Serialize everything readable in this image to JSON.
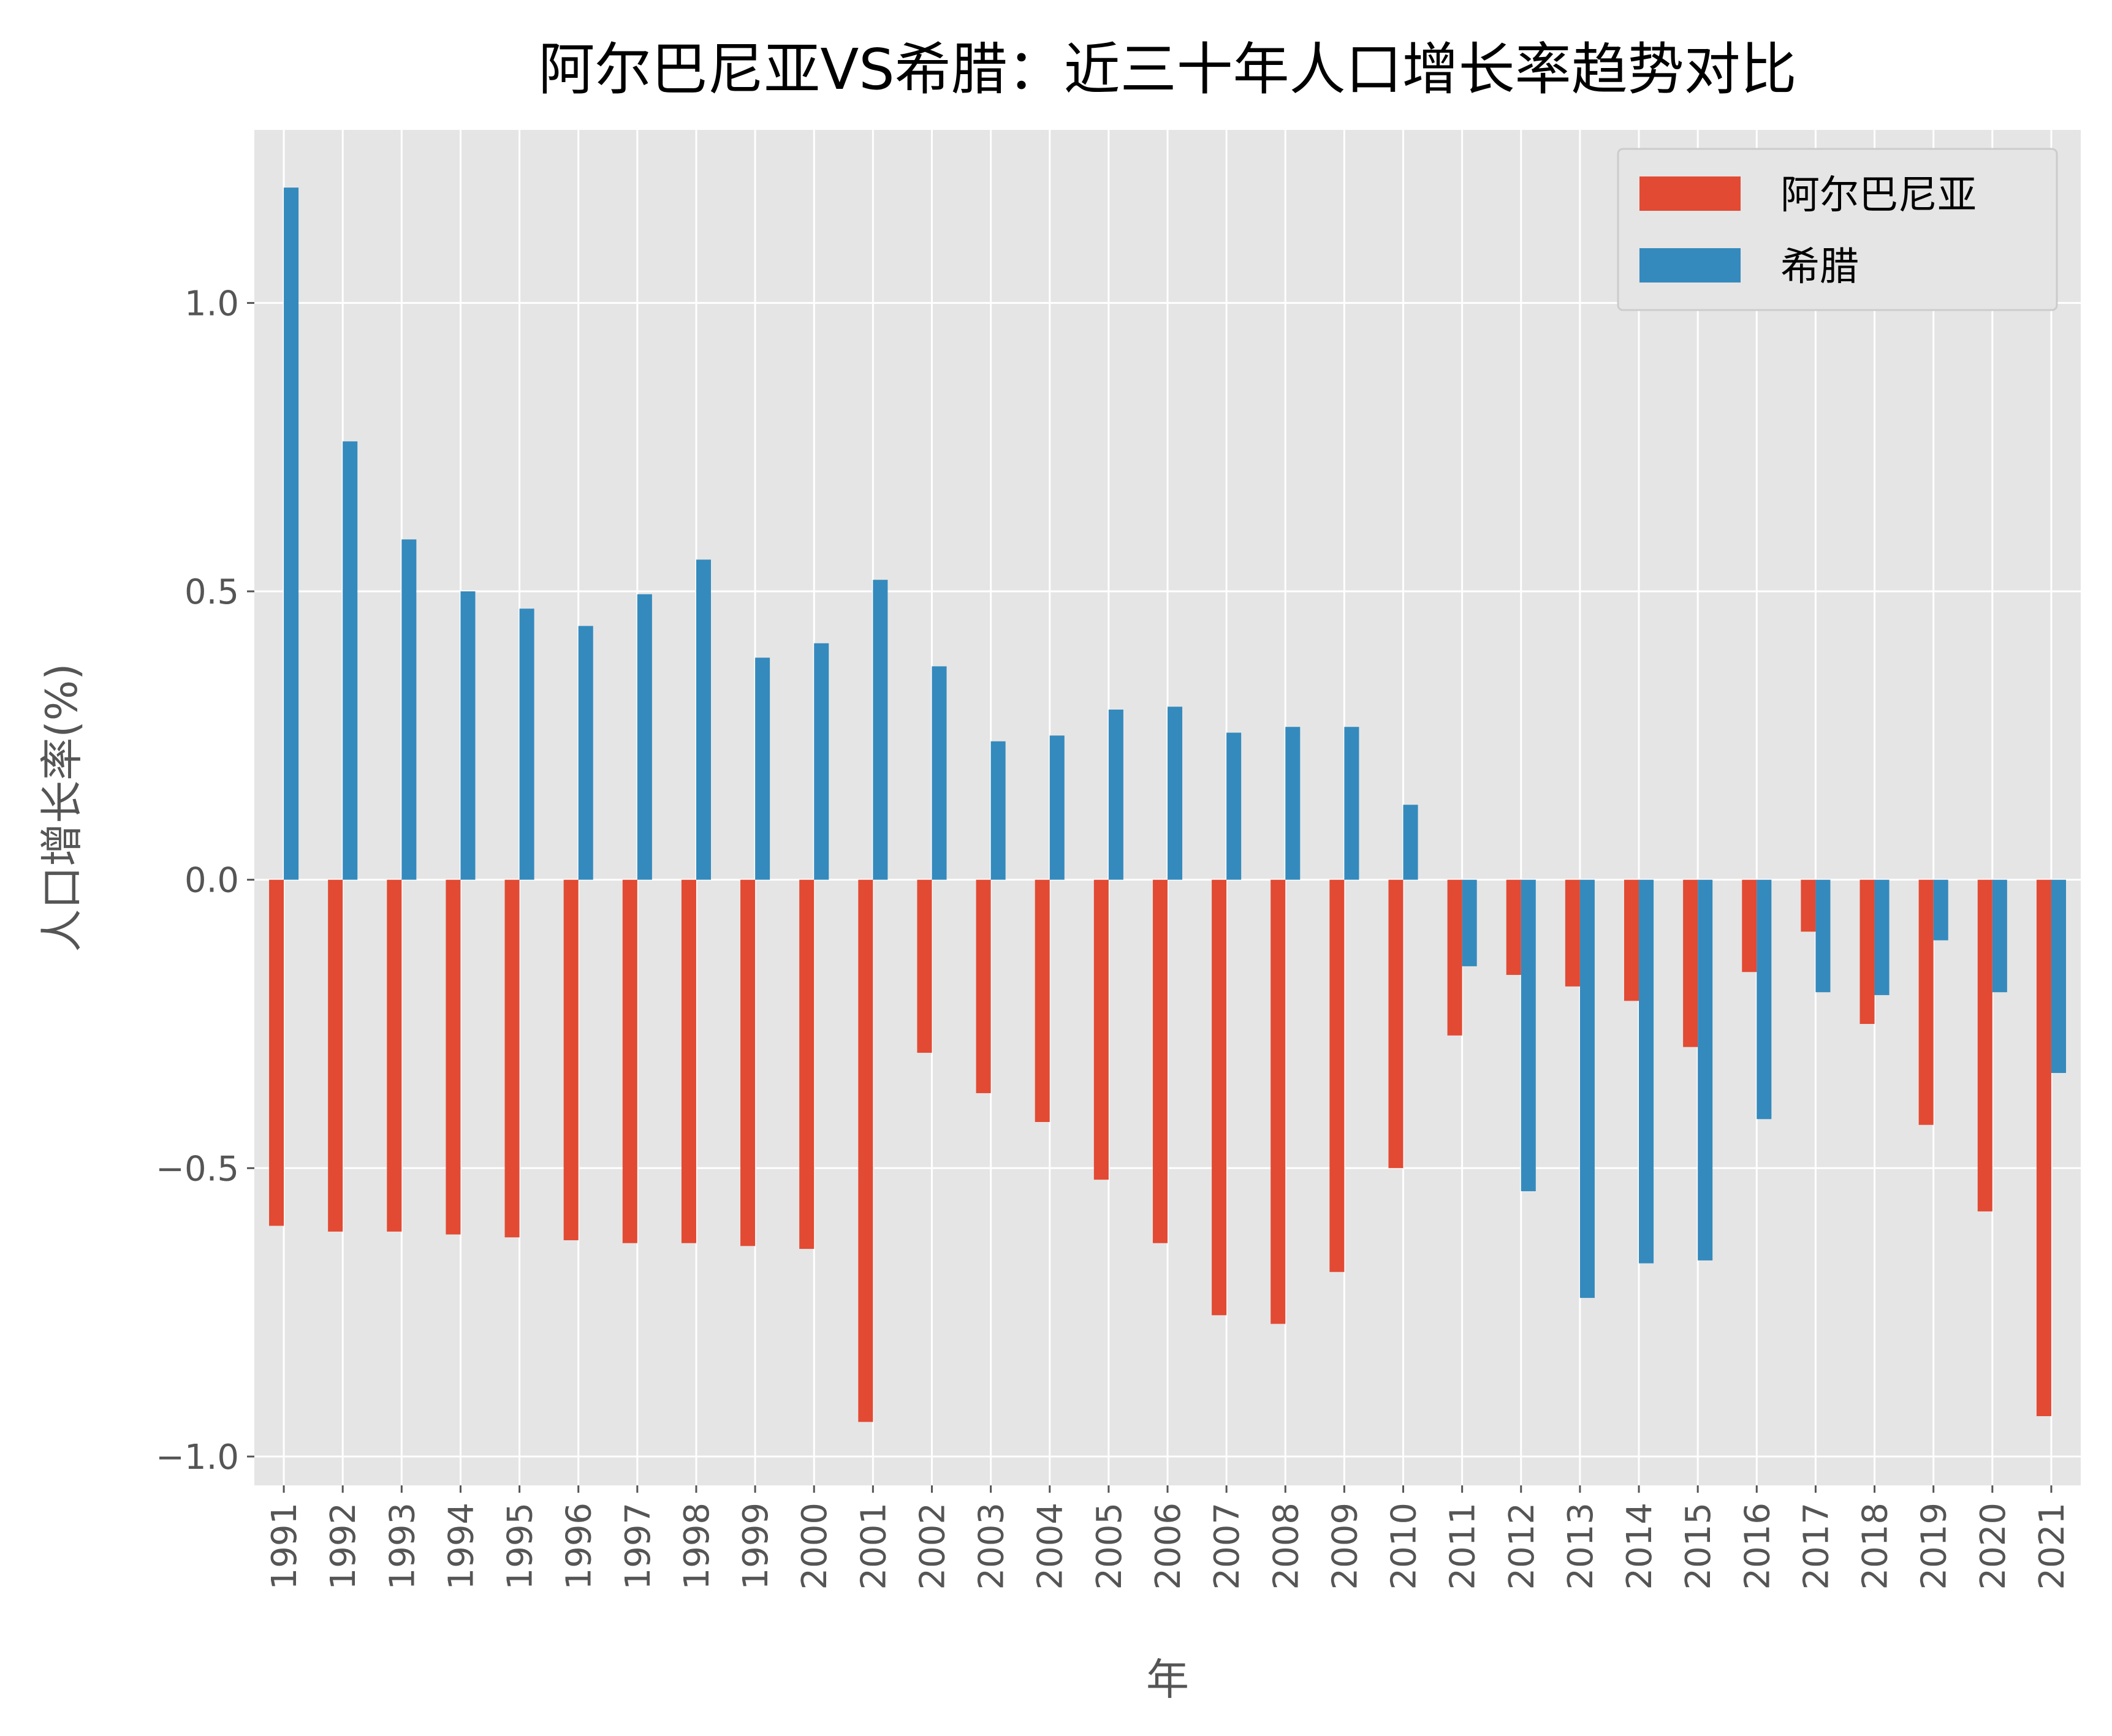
{
  "chart_data": {
    "type": "bar",
    "title": "阿尔巴尼亚VS希腊：近三十年人口增长率趋势对比",
    "xlabel": "年",
    "ylabel": "人口增长率(%)",
    "ylim": [
      -1.05,
      1.3
    ],
    "yticks": [
      -1.0,
      -0.5,
      0.0,
      0.5,
      1.0
    ],
    "ytick_labels": [
      "−1.0",
      "−0.5",
      "0.0",
      "0.5",
      "1.0"
    ],
    "grid": true,
    "legend_position": "top-right",
    "categories": [
      "1991",
      "1992",
      "1993",
      "1994",
      "1995",
      "1996",
      "1997",
      "1998",
      "1999",
      "2000",
      "2001",
      "2002",
      "2003",
      "2004",
      "2005",
      "2006",
      "2007",
      "2008",
      "2009",
      "2010",
      "2011",
      "2012",
      "2013",
      "2014",
      "2015",
      "2016",
      "2017",
      "2018",
      "2019",
      "2020",
      "2021"
    ],
    "series": [
      {
        "name": "阿尔巴尼亚",
        "color": "#E24A33",
        "values": [
          -0.6,
          -0.61,
          -0.61,
          -0.615,
          -0.62,
          -0.625,
          -0.63,
          -0.63,
          -0.635,
          -0.64,
          -0.94,
          -0.3,
          -0.37,
          -0.42,
          -0.52,
          -0.63,
          -0.755,
          -0.77,
          -0.68,
          -0.5,
          -0.27,
          -0.165,
          -0.185,
          -0.21,
          -0.29,
          -0.16,
          -0.09,
          -0.25,
          -0.425,
          -0.575,
          -0.93
        ]
      },
      {
        "name": "希腊",
        "color": "#348ABD",
        "values": [
          1.2,
          0.76,
          0.59,
          0.5,
          0.47,
          0.44,
          0.495,
          0.555,
          0.385,
          0.41,
          0.52,
          0.37,
          0.24,
          0.25,
          0.295,
          0.3,
          0.255,
          0.265,
          0.265,
          0.13,
          -0.15,
          -0.54,
          -0.725,
          -0.665,
          -0.66,
          -0.415,
          -0.195,
          -0.2,
          -0.105,
          -0.195,
          -0.335
        ]
      }
    ]
  }
}
